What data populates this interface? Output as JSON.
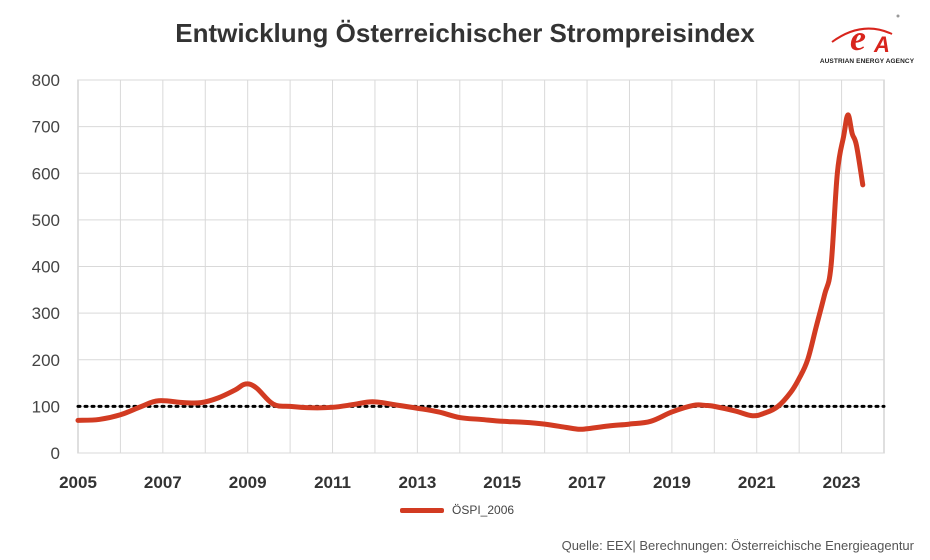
{
  "chart_data": {
    "type": "line",
    "title": "Entwicklung Österreichischer Strompreisindex",
    "ylim": [
      0,
      800
    ],
    "xlim": [
      2005,
      2024
    ],
    "y_ticks": [
      "0",
      "100",
      "200",
      "300",
      "400",
      "500",
      "600",
      "700",
      "800"
    ],
    "x_ticks": [
      "2005",
      "2007",
      "2009",
      "2011",
      "2013",
      "2015",
      "2017",
      "2019",
      "2021",
      "2023"
    ],
    "grid": true,
    "legend_position": "bottom",
    "reference_line": {
      "y": 100,
      "style": "dotted",
      "color": "#000000"
    },
    "series": [
      {
        "name": "ÖSPI_2006",
        "color": "#d23b22",
        "x": [
          2005.0,
          2005.5,
          2006.0,
          2006.5,
          2006.9,
          2007.5,
          2007.9,
          2008.3,
          2008.7,
          2008.95,
          2009.2,
          2009.6,
          2010.0,
          2010.5,
          2011.0,
          2011.5,
          2011.95,
          2012.5,
          2013.0,
          2013.5,
          2014.0,
          2014.5,
          2015.0,
          2015.5,
          2016.0,
          2016.5,
          2016.8,
          2017.0,
          2017.5,
          2018.0,
          2018.5,
          2019.0,
          2019.5,
          2019.8,
          2020.0,
          2020.5,
          2020.9,
          2021.2,
          2021.5,
          2021.8,
          2022.0,
          2022.2,
          2022.4,
          2022.6,
          2022.75,
          2022.9,
          2023.05,
          2023.15,
          2023.25,
          2023.35,
          2023.5
        ],
        "values": [
          70,
          72,
          82,
          100,
          112,
          108,
          108,
          118,
          135,
          148,
          140,
          105,
          100,
          97,
          98,
          104,
          110,
          103,
          96,
          88,
          76,
          72,
          68,
          66,
          62,
          55,
          51,
          52,
          58,
          62,
          68,
          88,
          102,
          102,
          100,
          90,
          80,
          86,
          100,
          130,
          160,
          200,
          270,
          340,
          400,
          600,
          680,
          725,
          685,
          660,
          575
        ]
      }
    ]
  },
  "logo": {
    "text": "AUSTRIAN ENERGY AGENCY",
    "mark": "eA"
  },
  "source": "Quelle: EEX| Berechnungen: Österreichische Energieagentur"
}
